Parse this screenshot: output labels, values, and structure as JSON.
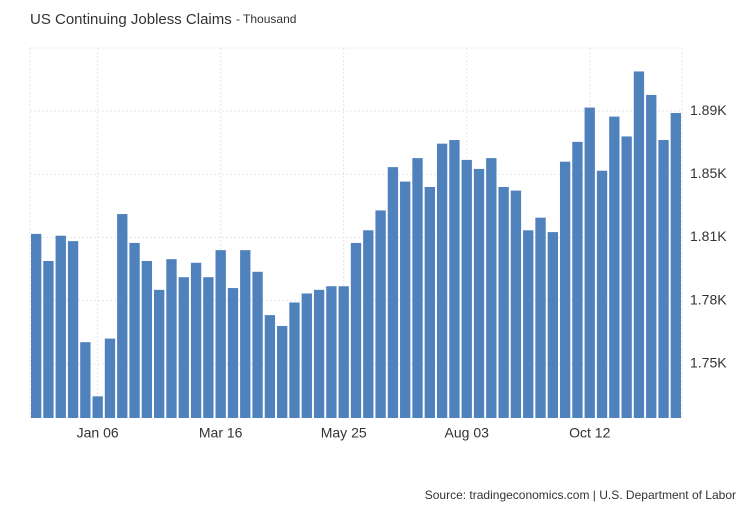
{
  "chart_data": {
    "type": "bar",
    "title": "US Continuing Jobless Claims",
    "subtitle": "- Thousand",
    "source": "Source: tradingeconomics.com | U.S. Department of Labor",
    "categories": [
      null,
      null,
      null,
      null,
      null,
      "Jan 06",
      null,
      null,
      null,
      null,
      null,
      null,
      null,
      null,
      null,
      "Mar 16",
      null,
      null,
      null,
      null,
      null,
      null,
      null,
      null,
      null,
      "May 25",
      null,
      null,
      null,
      null,
      null,
      null,
      null,
      null,
      null,
      "Aug 03",
      null,
      null,
      null,
      null,
      null,
      null,
      null,
      null,
      null,
      "Oct 12",
      null,
      null,
      null,
      null,
      null,
      null,
      null
    ],
    "values": [
      1817,
      1802,
      1816,
      1813,
      1757,
      1727,
      1759,
      1828,
      1812,
      1802,
      1786,
      1803,
      1793,
      1801,
      1793,
      1808,
      1787,
      1808,
      1796,
      1772,
      1766,
      1779,
      1784,
      1786,
      1788,
      1788,
      1812,
      1819,
      1830,
      1854,
      1846,
      1859,
      1843,
      1867,
      1869,
      1858,
      1853,
      1859,
      1843,
      1841,
      1819,
      1826,
      1818,
      1857,
      1868,
      1887,
      1852,
      1882,
      1871,
      1907,
      1894,
      1869,
      1884
    ],
    "color": "#4f81bd",
    "ylim": [
      1715,
      1920
    ],
    "yticks": [
      {
        "value": 1745,
        "label": "1.75K"
      },
      {
        "value": 1780,
        "label": "1.78K"
      },
      {
        "value": 1815,
        "label": "1.81K"
      },
      {
        "value": 1850,
        "label": "1.85K"
      },
      {
        "value": 1885,
        "label": "1.89K"
      }
    ],
    "grid": true
  }
}
